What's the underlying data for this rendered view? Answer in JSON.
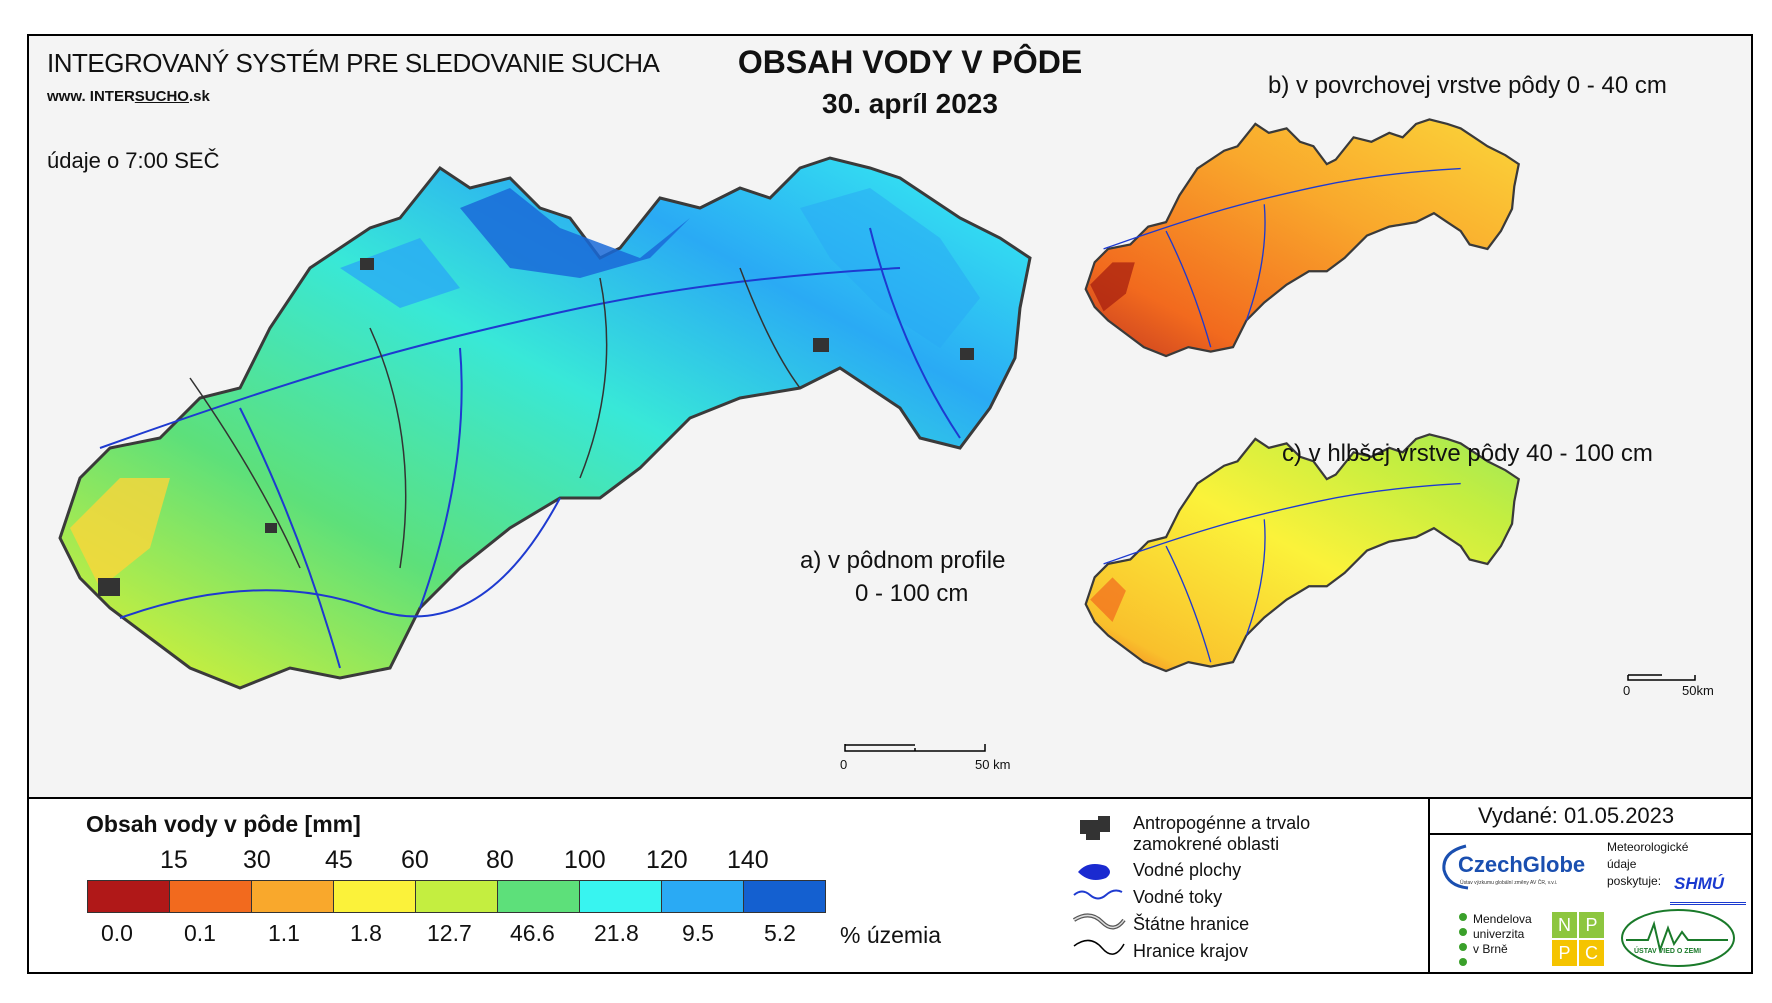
{
  "header": {
    "system_title": "INTEGROVANÝ SYSTÉM PRE SLEDOVANIE SUCHA",
    "url_prefix": "www.",
    "url_inter": "INTER",
    "url_sucho": "SUCHO",
    "url_suffix": ".sk",
    "time_note": "údaje o 7:00 SEČ",
    "main_title": "OBSAH VODY V PÔDE",
    "date": "30. apríl 2023"
  },
  "maps": {
    "a_label_line1": "a) v pôdnom profile",
    "a_label_line2": "0 - 100 cm",
    "b_label": "b) v povrchovej vrstve pôdy 0 - 40 cm",
    "c_label": "c) v hlbšej vrstve pôdy 40 - 100 cm",
    "scale_main": {
      "zero": "0",
      "end": "50 km"
    },
    "scale_small": {
      "zero": "0",
      "end": "50km"
    }
  },
  "legend": {
    "title": "Obsah vody v pôde  [mm]",
    "thresholds": [
      "15",
      "30",
      "45",
      "60",
      "80",
      "100",
      "120",
      "140"
    ],
    "colors": [
      "#b01818",
      "#f26a1e",
      "#f9a82c",
      "#fbf23a",
      "#c4ee40",
      "#5de07a",
      "#38f4f0",
      "#2aaaf4",
      "#1460d0"
    ],
    "percents": [
      "0.0",
      "0.1",
      "1.1",
      "1.8",
      "12.7",
      "46.6",
      "21.8",
      "9.5",
      "5.2"
    ],
    "percent_unit": "% územia"
  },
  "symbols": [
    {
      "icon": "urban-area-icon",
      "label_line1": "Antropogénne a trvalo",
      "label_line2": "zamokrené oblasti"
    },
    {
      "icon": "water-body-icon",
      "label_line1": "Vodné plochy"
    },
    {
      "icon": "river-icon",
      "label_line1": "Vodné toky"
    },
    {
      "icon": "state-border-icon",
      "label_line1": "Štátne hranice"
    },
    {
      "icon": "region-border-icon",
      "label_line1": "Hranice krajov"
    }
  ],
  "issued": "Vydané: 01.05.2023",
  "logos": {
    "czechglobe": "CzechGlobe",
    "czechglobe_sub": "Ústav výzkumu globální změny AV ČR, v.v.i.",
    "shmu_caption_1": "Meteorologické",
    "shmu_caption_2": "údaje",
    "shmu_caption_3": "poskytuje:",
    "shmu": "SHMÚ",
    "mendel_1": "Mendelova",
    "mendel_2": "univerzita",
    "mendel_3": "v Brně",
    "nppc": [
      "N",
      "P",
      "P",
      "C"
    ],
    "ustav": "ÚSTAV VIED O ZEMI"
  }
}
